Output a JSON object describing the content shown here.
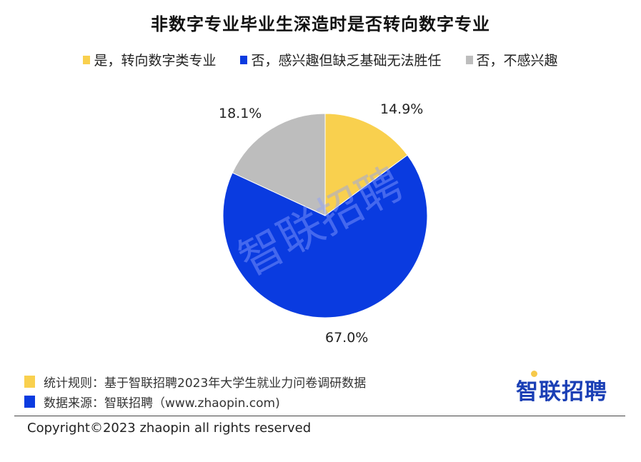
{
  "title": "非数字专业毕业生深造时是否转向数字专业",
  "legend": [
    {
      "label": "是，转向数字类专业",
      "color": "#F9D04E"
    },
    {
      "label": "否，感兴趣但缺乏基础无法胜任",
      "color": "#0A3BE0"
    },
    {
      "label": "否，不感兴趣",
      "color": "#BDBDBD"
    }
  ],
  "watermark": "智联招聘",
  "chart_data": {
    "type": "pie",
    "title": "非数字专业毕业生深造时是否转向数字专业",
    "categories": [
      "是，转向数字类专业",
      "否，感兴趣但缺乏基础无法胜任",
      "否，不感兴趣"
    ],
    "values": [
      14.9,
      67.0,
      18.1
    ],
    "labels": [
      "14.9%",
      "67.0%",
      "18.1%"
    ],
    "colors": [
      "#F9D04E",
      "#0A3BE0",
      "#BDBDBD"
    ],
    "start_angle": "12 o'clock, clockwise",
    "legend_position": "top"
  },
  "footer": {
    "rule_label": "统计规则：基于智联招聘2023年大学生就业力问卷调研数据",
    "rule_color": "#F9D04E",
    "source_label": "数据来源：智联招聘（www.zhaopin.com)",
    "source_color": "#0A3BE0",
    "copyright": "Copyright©2023 zhaopin all rights reserved",
    "brand": "智联招聘"
  }
}
